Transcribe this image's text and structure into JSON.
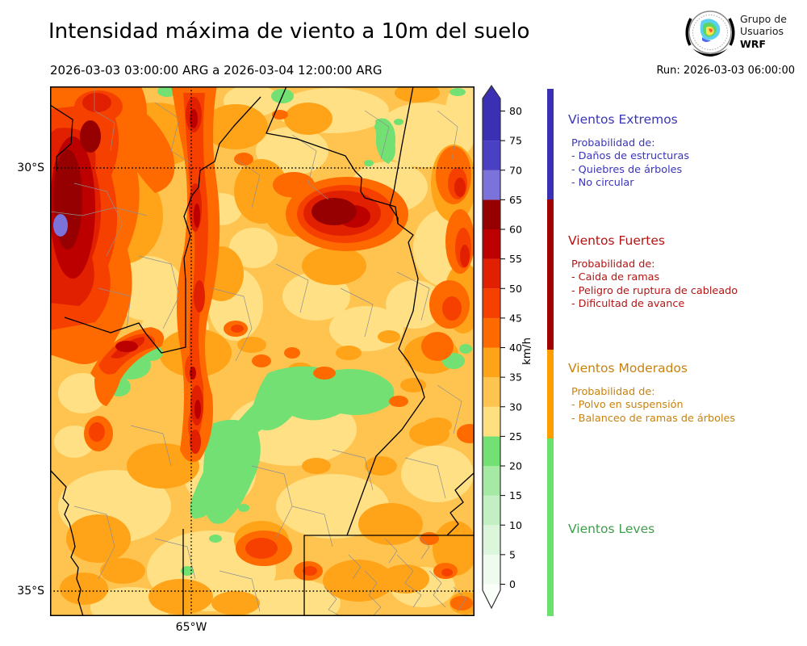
{
  "header": {
    "title": "Intensidad máxima de viento a 10m del suelo",
    "date_range": "2026-03-03 03:00:00 ARG  a  2026-03-04 12:00:00 ARG",
    "run_label": "Run: 2026-03-03 06:00:00",
    "logo_lines": [
      "Grupo de",
      "Usuarios",
      "WRF"
    ]
  },
  "map": {
    "axis_labels": {
      "lat_top": "30°S",
      "lat_bottom": "35°S",
      "lon": "65°W"
    },
    "palette": {
      "base": "#FFC450",
      "c25": "#FFE085",
      "c35": "#FFA318",
      "c20": "#72E072",
      "c40": "#FF6A00",
      "c45": "#F64000",
      "c50": "#E02000",
      "c55": "#BC0000",
      "c60": "#970000",
      "c65": "#7B72DA"
    }
  },
  "colorbar": {
    "unit": "km/h",
    "ticks": [
      0,
      5,
      10,
      15,
      20,
      25,
      30,
      35,
      40,
      45,
      50,
      55,
      60,
      65,
      70,
      75,
      80
    ],
    "segment_colors": [
      "#F0FBF0",
      "#DCF6DC",
      "#C3F0C3",
      "#A5E9A5",
      "#72E072",
      "#FFE080",
      "#FFC450",
      "#FFA318",
      "#FF6A00",
      "#F64000",
      "#E02000",
      "#BC0000",
      "#970000",
      "#7B72DA",
      "#4A40C4",
      "#3B2FB4"
    ],
    "over_color": "#3B2FB4",
    "under_color": "#FAFFFA"
  },
  "legend": {
    "categories": [
      {
        "title": "Vientos Extremos",
        "text_color": "#3B35B8",
        "bar_color": "#3B2FB4",
        "items_header": "Probabilidad de:",
        "items": [
          "- Daños de estructuras",
          "- Quiebres de árboles",
          "- No circular"
        ]
      },
      {
        "title": "Vientos Fuertes",
        "text_color": "#B31515",
        "bar_color": "#A00000",
        "items_header": "Probabilidad de:",
        "items": [
          "- Caida de ramas",
          "- Peligro de ruptura de cableado",
          "- Dificultad de avance"
        ]
      },
      {
        "title": "Vientos Moderados",
        "text_color": "#C8820F",
        "bar_color": "#FF9C00",
        "items_header": "Probabilidad de:",
        "items": [
          "- Polvo en suspensión",
          "- Balanceo de ramas de árboles"
        ]
      },
      {
        "title": "Vientos Leves",
        "text_color": "#3F9E4D",
        "bar_color": "#6CE06C",
        "items_header": "",
        "items": []
      }
    ]
  }
}
